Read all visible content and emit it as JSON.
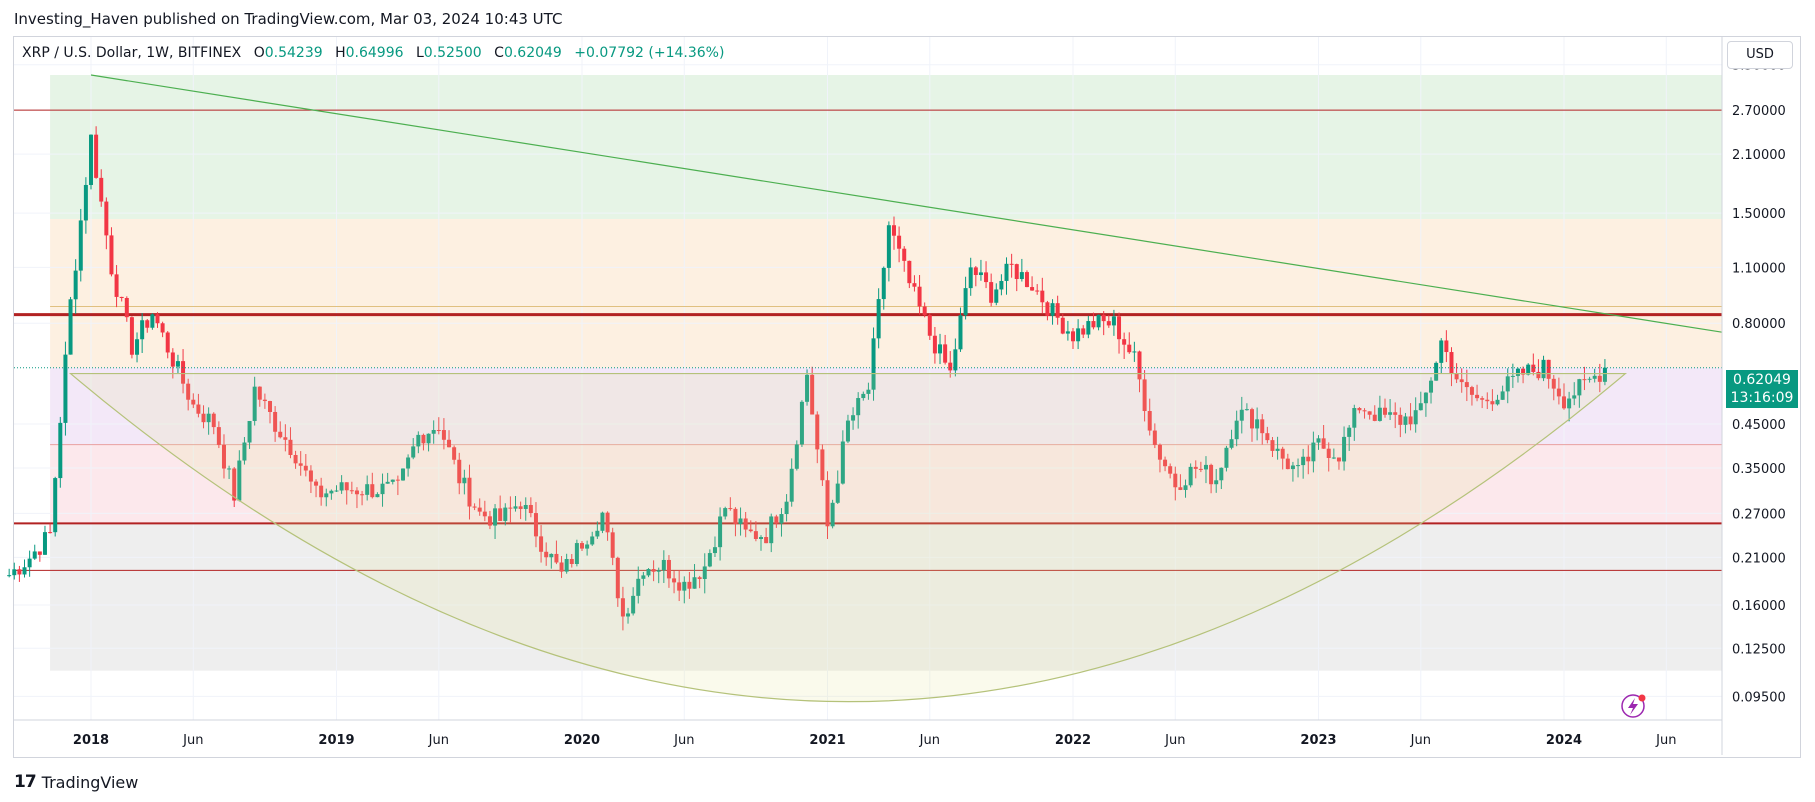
{
  "publisher_line": "Investing_Haven published on TradingView.com, Mar 03, 2024 10:43 UTC",
  "legend": {
    "symbol": "XRP / U.S. Dollar, 1W, BITFINEX",
    "o_label": "O",
    "o": "0.54239",
    "h_label": "H",
    "h": "0.64996",
    "l_label": "L",
    "l": "0.52500",
    "c_label": "C",
    "c": "0.62049",
    "change": "+0.07792 (+14.36%)"
  },
  "currency_button": "USD",
  "last_price": {
    "price": "0.62049",
    "countdown": "13:16:09"
  },
  "footer": {
    "brand": "TradingView",
    "mark": "17"
  },
  "colors": {
    "up": "#089981",
    "down": "#f23645",
    "resistance": "#b22222",
    "trend": "#4caf50"
  },
  "chart_data": {
    "type": "candlestick",
    "scale": "log",
    "y_ticks": [
      3.5,
      2.7,
      2.1,
      1.5,
      1.1,
      0.8,
      0.45,
      0.35,
      0.27,
      0.21,
      0.16,
      0.125,
      0.095
    ],
    "y_tick_labels": [
      "3.50000",
      "2.70000",
      "2.10000",
      "1.50000",
      "1.10000",
      "0.80000",
      "0.45000",
      "0.35000",
      "0.27000",
      "0.21000",
      "0.16000",
      "0.12500",
      "0.09500"
    ],
    "x_ticks": [
      {
        "label": "2018",
        "date": "2018-01",
        "bold": true
      },
      {
        "label": "Jun",
        "date": "2018-06",
        "bold": false
      },
      {
        "label": "2019",
        "date": "2019-01",
        "bold": true
      },
      {
        "label": "Jun",
        "date": "2019-06",
        "bold": false
      },
      {
        "label": "2020",
        "date": "2020-01",
        "bold": true
      },
      {
        "label": "Jun",
        "date": "2020-06",
        "bold": false
      },
      {
        "label": "2021",
        "date": "2021-01",
        "bold": true
      },
      {
        "label": "Jun",
        "date": "2021-06",
        "bold": false
      },
      {
        "label": "2022",
        "date": "2022-01",
        "bold": true
      },
      {
        "label": "Jun",
        "date": "2022-06",
        "bold": false
      },
      {
        "label": "2023",
        "date": "2023-01",
        "bold": true
      },
      {
        "label": "Jun",
        "date": "2023-06",
        "bold": false
      },
      {
        "label": "2024",
        "date": "2024-01",
        "bold": true
      },
      {
        "label": "Jun",
        "date": "2024-06",
        "bold": false
      }
    ],
    "zones": [
      {
        "from": 1.45,
        "to": 3.3,
        "color": "#e6f4e6"
      },
      {
        "from": 0.82,
        "to": 1.45,
        "color": "#fdf0e1"
      },
      {
        "from": 0.62,
        "to": 0.82,
        "color": "#fdf0e1"
      },
      {
        "from": 0.4,
        "to": 0.62,
        "color": "#f3e8f8"
      },
      {
        "from": 0.255,
        "to": 0.4,
        "color": "#fce8ec"
      },
      {
        "from": 0.11,
        "to": 0.255,
        "color": "#eeeeee"
      }
    ],
    "horizontal_levels": [
      2.7,
      0.84,
      0.255,
      0.195,
      0.4,
      0.88
    ],
    "close_series": [
      [
        "2017-09",
        0.19
      ],
      [
        "2017-10",
        0.21
      ],
      [
        "2017-11",
        0.24
      ],
      [
        "2017-12",
        0.9
      ],
      [
        "2018-01",
        2.3
      ],
      [
        "2018-02",
        1.1
      ],
      [
        "2018-03",
        0.7
      ],
      [
        "2018-04",
        0.85
      ],
      [
        "2018-05",
        0.65
      ],
      [
        "2018-06",
        0.5
      ],
      [
        "2018-07",
        0.45
      ],
      [
        "2018-08",
        0.3
      ],
      [
        "2018-09",
        0.55
      ],
      [
        "2018-10",
        0.45
      ],
      [
        "2018-11",
        0.38
      ],
      [
        "2018-12",
        0.3
      ],
      [
        "2019-01",
        0.31
      ],
      [
        "2019-02",
        0.31
      ],
      [
        "2019-03",
        0.31
      ],
      [
        "2019-04",
        0.31
      ],
      [
        "2019-05",
        0.42
      ],
      [
        "2019-06",
        0.45
      ],
      [
        "2019-07",
        0.33
      ],
      [
        "2019-08",
        0.27
      ],
      [
        "2019-09",
        0.26
      ],
      [
        "2019-10",
        0.29
      ],
      [
        "2019-11",
        0.23
      ],
      [
        "2019-12",
        0.19
      ],
      [
        "2020-01",
        0.23
      ],
      [
        "2020-02",
        0.27
      ],
      [
        "2020-03",
        0.15
      ],
      [
        "2020-04",
        0.2
      ],
      [
        "2020-05",
        0.2
      ],
      [
        "2020-06",
        0.18
      ],
      [
        "2020-07",
        0.2
      ],
      [
        "2020-08",
        0.28
      ],
      [
        "2020-09",
        0.24
      ],
      [
        "2020-10",
        0.24
      ],
      [
        "2020-11",
        0.3
      ],
      [
        "2020-12",
        0.6
      ],
      [
        "2021-01",
        0.25
      ],
      [
        "2021-02",
        0.45
      ],
      [
        "2021-03",
        0.55
      ],
      [
        "2021-04",
        1.4
      ],
      [
        "2021-05",
        1.0
      ],
      [
        "2021-06",
        0.75
      ],
      [
        "2021-07",
        0.6
      ],
      [
        "2021-08",
        1.1
      ],
      [
        "2021-09",
        0.95
      ],
      [
        "2021-10",
        1.1
      ],
      [
        "2021-11",
        1.0
      ],
      [
        "2021-12",
        0.85
      ],
      [
        "2022-01",
        0.75
      ],
      [
        "2022-02",
        0.8
      ],
      [
        "2022-03",
        0.8
      ],
      [
        "2022-04",
        0.65
      ],
      [
        "2022-05",
        0.4
      ],
      [
        "2022-06",
        0.32
      ],
      [
        "2022-07",
        0.35
      ],
      [
        "2022-08",
        0.33
      ],
      [
        "2022-09",
        0.48
      ],
      [
        "2022-10",
        0.46
      ],
      [
        "2022-11",
        0.38
      ],
      [
        "2022-12",
        0.34
      ],
      [
        "2023-01",
        0.4
      ],
      [
        "2023-02",
        0.38
      ],
      [
        "2023-03",
        0.5
      ],
      [
        "2023-04",
        0.47
      ],
      [
        "2023-05",
        0.46
      ],
      [
        "2023-06",
        0.48
      ],
      [
        "2023-07",
        0.72
      ],
      [
        "2023-08",
        0.55
      ],
      [
        "2023-09",
        0.51
      ],
      [
        "2023-10",
        0.55
      ],
      [
        "2023-11",
        0.6
      ],
      [
        "2023-12",
        0.62
      ],
      [
        "2024-01",
        0.52
      ],
      [
        "2024-02",
        0.56
      ],
      [
        "2024-03",
        0.62049
      ]
    ]
  }
}
